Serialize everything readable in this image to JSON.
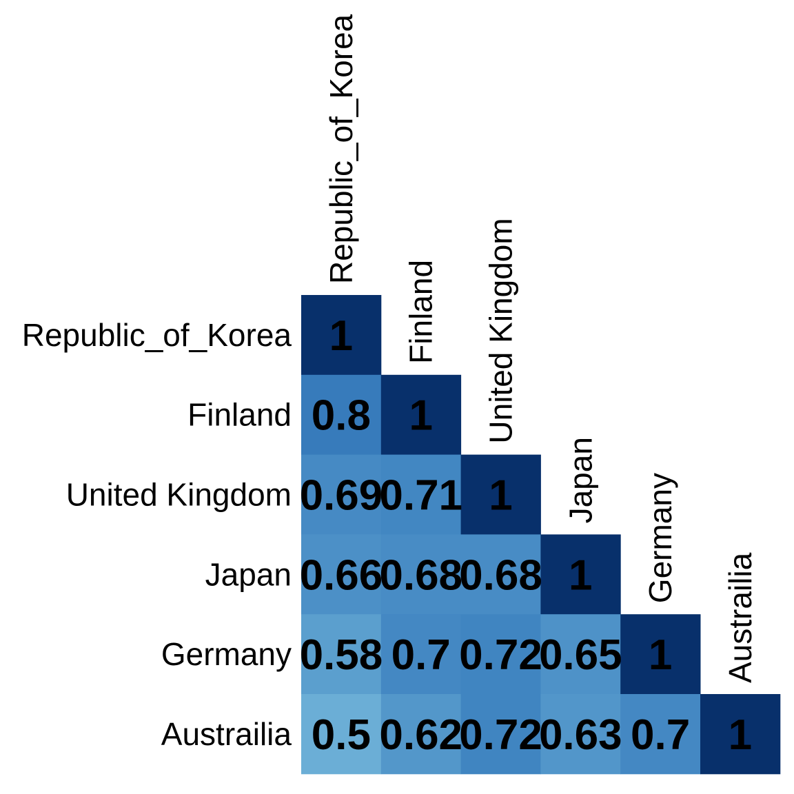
{
  "chart_data": {
    "type": "heatmap",
    "title": "",
    "variables": [
      "Republic_of_Korea",
      "Finland",
      "United Kingdom",
      "Japan",
      "Germany",
      "Austrailia"
    ],
    "matrix_lower_triangle": [
      [
        1
      ],
      [
        0.8,
        1
      ],
      [
        0.69,
        0.71,
        1
      ],
      [
        0.66,
        0.68,
        0.68,
        1
      ],
      [
        0.58,
        0.7,
        0.72,
        0.65,
        1
      ],
      [
        0.5,
        0.62,
        0.72,
        0.63,
        0.7,
        1
      ]
    ],
    "value_range": [
      0.5,
      1
    ],
    "color_scale": {
      "low": "#6baed6",
      "mid": "#3a7fbe",
      "high": "#08306b"
    },
    "legend": "none",
    "grid": false
  }
}
